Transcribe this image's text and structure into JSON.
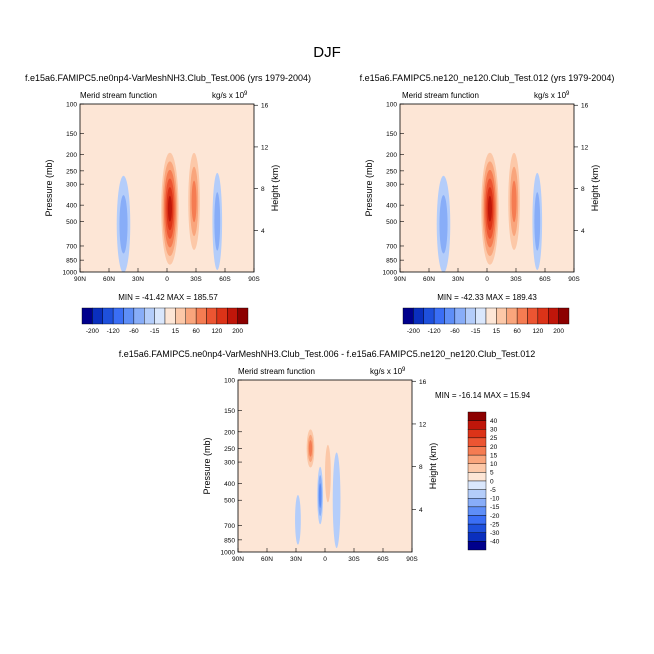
{
  "figure": {
    "title": "DJF",
    "colors": {
      "outline": "#000000",
      "background": "#ffffff"
    }
  },
  "chart_data": [
    {
      "type": "heatmap",
      "id": "left",
      "title": "f.e15a6.FAMIPC5.ne0np4-VarMeshNH3.Club_Test.006 (yrs 1979-2004)",
      "subtitle_left": "Merid stream function",
      "units_label": "kg/s x 10",
      "units_exp": "9",
      "xlabel": "",
      "ylabel": "Pressure (mb)",
      "y2label": "Height (km)",
      "x_ticks": [
        "90N",
        "60N",
        "30N",
        "0",
        "30S",
        "60S",
        "90S"
      ],
      "y_ticks": [
        "100",
        "150",
        "200",
        "250",
        "300",
        "400",
        "500",
        "700",
        "850",
        "1000"
      ],
      "y2_ticks": [
        "16",
        "12",
        "8",
        "4"
      ],
      "stats": "MIN = -41.42  MAX = 185.57",
      "min": -41.42,
      "max": 185.57,
      "features": [
        {
          "lat": -3,
          "p": 420,
          "value": 185.57,
          "w": 9,
          "h": 300
        },
        {
          "lat": -28,
          "p": 380,
          "value": 60,
          "w": 6,
          "h": 260
        },
        {
          "lat": 45,
          "p": 520,
          "value": -41.42,
          "w": 7,
          "h": 260
        },
        {
          "lat": -52,
          "p": 500,
          "value": -35,
          "w": 5,
          "h": 260
        },
        {
          "lat": 20,
          "p": 380,
          "value": 10,
          "w": 6,
          "h": 320
        }
      ]
    },
    {
      "type": "heatmap",
      "id": "right",
      "title": "f.e15a6.FAMIPC5.ne120_ne120.Club_Test.012 (yrs 1979-2004)",
      "subtitle_left": "Merid stream function",
      "units_label": "kg/s x 10",
      "units_exp": "9",
      "xlabel": "",
      "ylabel": "Pressure (mb)",
      "y2label": "Height (km)",
      "x_ticks": [
        "90N",
        "60N",
        "30N",
        "0",
        "30S",
        "60S",
        "90S"
      ],
      "y_ticks": [
        "100",
        "150",
        "200",
        "250",
        "300",
        "400",
        "500",
        "700",
        "850",
        "1000"
      ],
      "y2_ticks": [
        "16",
        "12",
        "8",
        "4"
      ],
      "stats": "MIN = -42.33  MAX = 189.43",
      "min": -42.33,
      "max": 189.43,
      "features": [
        {
          "lat": -3,
          "p": 420,
          "value": 189.43,
          "w": 9,
          "h": 300
        },
        {
          "lat": -28,
          "p": 380,
          "value": 65,
          "w": 6,
          "h": 260
        },
        {
          "lat": 45,
          "p": 520,
          "value": -42.33,
          "w": 7,
          "h": 260
        },
        {
          "lat": -52,
          "p": 500,
          "value": -38,
          "w": 5,
          "h": 260
        },
        {
          "lat": 20,
          "p": 380,
          "value": 10,
          "w": 6,
          "h": 320
        }
      ]
    },
    {
      "type": "heatmap",
      "id": "diff",
      "title": "f.e15a6.FAMIPC5.ne0np4-VarMeshNH3.Club_Test.006 - f.e15a6.FAMIPC5.ne120_ne120.Club_Test.012",
      "subtitle_left": "Merid stream function",
      "units_label": "kg/s x 10",
      "units_exp": "9",
      "xlabel": "",
      "ylabel": "Pressure (mb)",
      "y2label": "Height (km)",
      "x_ticks": [
        "90N",
        "60N",
        "30N",
        "0",
        "30S",
        "60S",
        "90S"
      ],
      "y_ticks": [
        "100",
        "150",
        "200",
        "250",
        "300",
        "400",
        "500",
        "700",
        "850",
        "1000"
      ],
      "y2_ticks": [
        "16",
        "12",
        "8",
        "4"
      ],
      "stats": "MIN = -16.14  MAX = 15.94",
      "min": -16.14,
      "max": 15.94,
      "features": [
        {
          "lat": 15,
          "p": 250,
          "value": 15.94,
          "w": 4,
          "h": 100
        },
        {
          "lat": 5,
          "p": 470,
          "value": -16.14,
          "w": 3,
          "h": 150
        },
        {
          "lat": 28,
          "p": 650,
          "value": -8,
          "w": 3,
          "h": 130
        },
        {
          "lat": -3,
          "p": 350,
          "value": 8,
          "w": 3,
          "h": 150
        },
        {
          "lat": -12,
          "p": 500,
          "value": -5,
          "w": 4,
          "h": 250
        },
        {
          "lat": 38,
          "p": 400,
          "value": 4,
          "w": 8,
          "h": 280
        },
        {
          "lat": -60,
          "p": 500,
          "value": 3,
          "w": 6,
          "h": 300
        }
      ]
    }
  ],
  "colorbars": {
    "left": {
      "labels": [
        "-200",
        "-120",
        "-60",
        "-15",
        "15",
        "60",
        "120",
        "200"
      ],
      "colors": [
        "#00008c",
        "#0a2fbe",
        "#1e50dc",
        "#3a6ef5",
        "#5e8ef7",
        "#88adf8",
        "#b4cdfa",
        "#dae7fc",
        "#fde6d6",
        "#fcc8a8",
        "#f9a57c",
        "#f57c52",
        "#ec5532",
        "#dc3318",
        "#c0160a",
        "#8c0000"
      ]
    },
    "right": {
      "labels": [
        "-200",
        "-120",
        "-60",
        "-15",
        "15",
        "60",
        "120",
        "200"
      ],
      "colors": [
        "#00008c",
        "#0a2fbe",
        "#1e50dc",
        "#3a6ef5",
        "#5e8ef7",
        "#88adf8",
        "#b4cdfa",
        "#dae7fc",
        "#fde6d6",
        "#fcc8a8",
        "#f9a57c",
        "#f57c52",
        "#ec5532",
        "#dc3318",
        "#c0160a",
        "#8c0000"
      ]
    },
    "diff": {
      "labels": [
        "40",
        "30",
        "25",
        "20",
        "15",
        "10",
        "5",
        "0",
        "-5",
        "-10",
        "-15",
        "-20",
        "-25",
        "-30",
        "-40"
      ],
      "colors": [
        "#8c0000",
        "#c0160a",
        "#dc3318",
        "#ec5532",
        "#f57c52",
        "#f9a57c",
        "#fcc8a8",
        "#fde6d6",
        "#dae7fc",
        "#b4cdfa",
        "#88adf8",
        "#5e8ef7",
        "#3a6ef5",
        "#1e50dc",
        "#0a2fbe",
        "#00008c"
      ]
    }
  }
}
